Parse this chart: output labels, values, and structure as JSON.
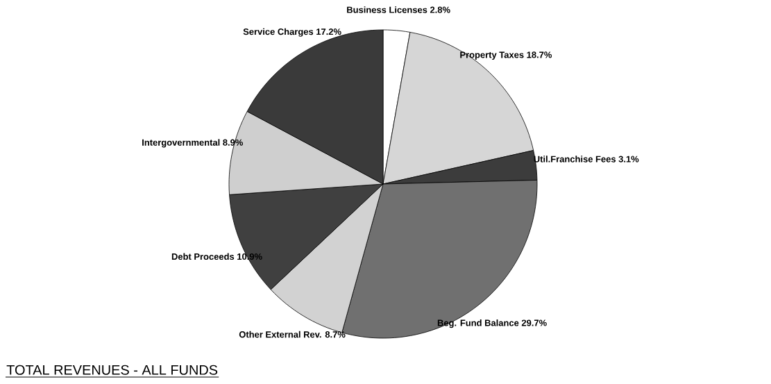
{
  "chart_data": {
    "type": "pie",
    "title": "TOTAL REVENUES - ALL FUNDS",
    "categories": [
      "Business Licenses",
      "Property Taxes",
      "Util.Franchise Fees",
      "Beg. Fund Balance",
      "Other External Rev.",
      "Debt Proceeds",
      "Intergovernmental",
      "Service Charges"
    ],
    "values": [
      2.8,
      18.7,
      3.1,
      29.7,
      8.7,
      10.9,
      8.9,
      17.2
    ],
    "value_labels": [
      "2.8%",
      "18.7%",
      "3.1%",
      "29.7%",
      "8.7%",
      "10.9%",
      "8.9%",
      "17.2%"
    ],
    "colors": [
      "#ffffff",
      "#d6d6d6",
      "#3c3c3c",
      "#707070",
      "#d2d2d2",
      "#404040",
      "#cfcfcf",
      "#3a3a3a"
    ]
  }
}
